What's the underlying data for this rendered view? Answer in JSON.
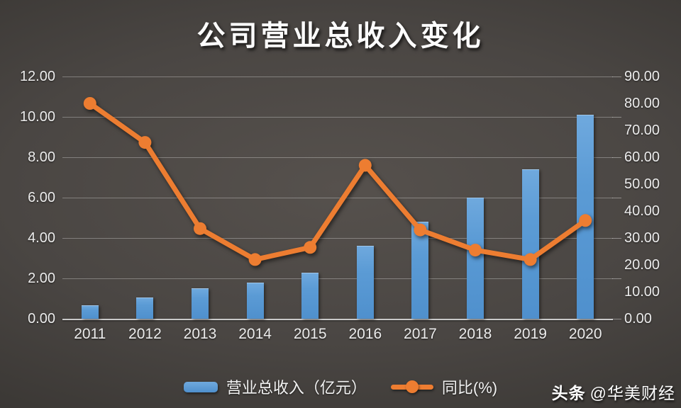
{
  "title": "公司营业总收入变化",
  "watermark": {
    "brand": "头条",
    "handle": "@华美财经"
  },
  "colors": {
    "bar": "#5b9bd5",
    "line": "#ed7d31",
    "axis_text": "#ececec",
    "gridline": "rgba(255,255,255,0.30)"
  },
  "chart_data": {
    "type": "bar",
    "subtype": "combo-bar-line",
    "title": "公司营业总收入变化",
    "categories": [
      "2011",
      "2012",
      "2013",
      "2014",
      "2015",
      "2016",
      "2017",
      "2018",
      "2019",
      "2020"
    ],
    "series": [
      {
        "name": "营业总收入（亿元）",
        "type": "bar",
        "axis": "left",
        "color": "#5b9bd5",
        "values": [
          0.67,
          1.05,
          1.5,
          1.8,
          2.3,
          3.6,
          4.8,
          6.0,
          7.4,
          10.1
        ]
      },
      {
        "name": "同比(%)",
        "type": "line",
        "axis": "right",
        "color": "#ed7d31",
        "values": [
          80,
          65.5,
          33.5,
          22,
          26.5,
          57,
          33,
          25.5,
          22,
          36.5
        ]
      }
    ],
    "left_axis": {
      "min": 0,
      "max": 12,
      "step": 2,
      "labels": [
        "12.00",
        "10.00",
        "8.00",
        "6.00",
        "4.00",
        "2.00",
        "0.00"
      ]
    },
    "right_axis": {
      "min": 0,
      "max": 90,
      "step": 10,
      "labels": [
        "90.00",
        "80.00",
        "70.00",
        "60.00",
        "50.00",
        "40.00",
        "30.00",
        "20.00",
        "10.00",
        "0.00"
      ]
    },
    "grid": true,
    "legend_position": "bottom"
  }
}
